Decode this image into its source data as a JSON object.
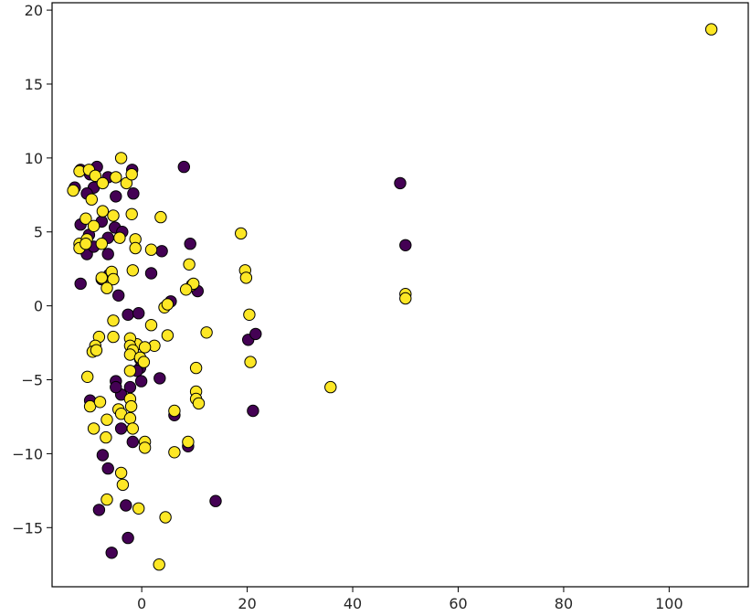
{
  "chart_data": {
    "type": "scatter",
    "title": "",
    "xlabel": "",
    "ylabel": "",
    "xlim": [
      -17,
      115
    ],
    "ylim": [
      -19,
      20.5
    ],
    "x_ticks": [
      0,
      20,
      40,
      60,
      80,
      100
    ],
    "y_ticks": [
      -15,
      -10,
      -5,
      0,
      5,
      10,
      15,
      20
    ],
    "x_tick_labels": [
      "0",
      "20",
      "40",
      "60",
      "80",
      "100"
    ],
    "y_tick_labels": [
      "−15",
      "−10",
      "−5",
      "0",
      "5",
      "10",
      "15",
      "20"
    ],
    "grid": false,
    "legend": "none",
    "colors": {
      "class_0": "#440154",
      "class_1": "#fde725",
      "edge": "#000000",
      "axes": "#000000"
    },
    "series": [
      {
        "class": 0,
        "color": "#440154",
        "points": [
          [
            -12.7,
            8.0
          ],
          [
            -11.6,
            9.2
          ],
          [
            -9.8,
            8.9
          ],
          [
            -8.5,
            9.4
          ],
          [
            -9.1,
            8.0
          ],
          [
            -10.4,
            7.6
          ],
          [
            -6.4,
            8.7
          ],
          [
            -4.9,
            7.4
          ],
          [
            -1.8,
            9.2
          ],
          [
            -1.6,
            7.6
          ],
          [
            -11.6,
            5.5
          ],
          [
            -10.0,
            4.8
          ],
          [
            -7.6,
            5.7
          ],
          [
            -6.4,
            4.6
          ],
          [
            -5.1,
            5.3
          ],
          [
            -3.7,
            5.0
          ],
          [
            -11.6,
            3.9
          ],
          [
            -10.4,
            3.5
          ],
          [
            -9.1,
            4.0
          ],
          [
            -6.4,
            3.5
          ],
          [
            -6.2,
            2.1
          ],
          [
            -11.6,
            1.5
          ],
          [
            -7.6,
            1.8
          ],
          [
            -4.4,
            0.7
          ],
          [
            -2.6,
            -0.6
          ],
          [
            -0.6,
            -0.5
          ],
          [
            -0.3,
            -3.6
          ],
          [
            -0.3,
            -4.2
          ],
          [
            -0.9,
            -4.4
          ],
          [
            -0.1,
            -5.1
          ],
          [
            -2.2,
            -5.5
          ],
          [
            -3.9,
            -6.0
          ],
          [
            -4.9,
            -5.1
          ],
          [
            -4.9,
            -5.5
          ],
          [
            -9.8,
            -6.4
          ],
          [
            -3.9,
            -8.3
          ],
          [
            -1.7,
            -9.2
          ],
          [
            -7.4,
            -10.1
          ],
          [
            -6.4,
            -11.0
          ],
          [
            -8.1,
            -13.8
          ],
          [
            -3.0,
            -13.5
          ],
          [
            -5.7,
            -16.7
          ],
          [
            -2.6,
            -15.7
          ],
          [
            3.8,
            3.7
          ],
          [
            8.0,
            9.4
          ],
          [
            9.2,
            4.2
          ],
          [
            10.6,
            1.0
          ],
          [
            5.5,
            0.3
          ],
          [
            3.4,
            -4.9
          ],
          [
            6.2,
            -7.4
          ],
          [
            8.8,
            -9.5
          ],
          [
            1.8,
            2.2
          ],
          [
            14.0,
            -13.2
          ],
          [
            20.2,
            -2.3
          ],
          [
            21.6,
            -1.9
          ],
          [
            21.1,
            -7.1
          ],
          [
            49.0,
            8.3
          ],
          [
            50.0,
            4.1
          ]
        ]
      },
      {
        "class": 1,
        "color": "#fde725",
        "points": [
          [
            -13.0,
            7.8
          ],
          [
            -11.8,
            9.1
          ],
          [
            -10.0,
            9.2
          ],
          [
            -9.5,
            7.2
          ],
          [
            -8.8,
            8.8
          ],
          [
            -7.4,
            8.3
          ],
          [
            -3.9,
            10.0
          ],
          [
            -4.9,
            8.7
          ],
          [
            -2.9,
            8.3
          ],
          [
            -1.9,
            8.9
          ],
          [
            -10.6,
            5.9
          ],
          [
            -9.1,
            5.4
          ],
          [
            -7.4,
            6.4
          ],
          [
            -5.4,
            6.1
          ],
          [
            -11.8,
            4.2
          ],
          [
            -10.4,
            4.5
          ],
          [
            -7.6,
            4.2
          ],
          [
            -4.2,
            4.6
          ],
          [
            -1.9,
            6.2
          ],
          [
            -1.2,
            4.5
          ],
          [
            -1.2,
            3.9
          ],
          [
            -11.8,
            3.9
          ],
          [
            -10.6,
            4.2
          ],
          [
            -5.7,
            2.1
          ],
          [
            -5.7,
            2.3
          ],
          [
            -5.4,
            1.8
          ],
          [
            -7.6,
            1.9
          ],
          [
            -6.6,
            1.2
          ],
          [
            -1.7,
            2.4
          ],
          [
            1.8,
            3.8
          ],
          [
            3.6,
            6.0
          ],
          [
            9.5,
            1.4
          ],
          [
            9.0,
            2.8
          ],
          [
            9.8,
            1.5
          ],
          [
            8.4,
            1.1
          ],
          [
            4.3,
            -0.1
          ],
          [
            4.9,
            0.1
          ],
          [
            1.8,
            -1.3
          ],
          [
            4.9,
            -2.0
          ],
          [
            2.4,
            -2.7
          ],
          [
            -0.9,
            -2.6
          ],
          [
            0.6,
            -2.8
          ],
          [
            -5.4,
            -2.1
          ],
          [
            -5.4,
            -1.0
          ],
          [
            -8.1,
            -2.1
          ],
          [
            -8.8,
            -2.7
          ],
          [
            -9.3,
            -3.1
          ],
          [
            -8.6,
            -3.0
          ],
          [
            -2.2,
            -2.2
          ],
          [
            -2.2,
            -2.7
          ],
          [
            -1.7,
            -3.0
          ],
          [
            -2.2,
            -3.3
          ],
          [
            -0.3,
            -3.5
          ],
          [
            0.4,
            -3.8
          ],
          [
            -2.2,
            -4.4
          ],
          [
            -10.3,
            -4.8
          ],
          [
            -9.8,
            -6.8
          ],
          [
            -7.9,
            -6.5
          ],
          [
            -4.4,
            -7.0
          ],
          [
            -3.9,
            -7.3
          ],
          [
            -2.2,
            -6.3
          ],
          [
            -2.0,
            -6.8
          ],
          [
            -2.2,
            -7.6
          ],
          [
            -6.6,
            -7.7
          ],
          [
            -6.8,
            -8.9
          ],
          [
            -9.1,
            -8.3
          ],
          [
            -1.7,
            -8.3
          ],
          [
            0.6,
            -9.2
          ],
          [
            0.6,
            -9.6
          ],
          [
            6.2,
            -9.9
          ],
          [
            8.8,
            -9.2
          ],
          [
            6.2,
            -7.1
          ],
          [
            10.3,
            -4.2
          ],
          [
            10.3,
            -5.8
          ],
          [
            10.3,
            -6.3
          ],
          [
            10.8,
            -6.6
          ],
          [
            12.3,
            -1.8
          ],
          [
            18.8,
            4.9
          ],
          [
            19.6,
            2.4
          ],
          [
            19.8,
            1.9
          ],
          [
            20.4,
            -0.6
          ],
          [
            20.6,
            -3.8
          ],
          [
            -3.9,
            -11.3
          ],
          [
            -3.6,
            -12.1
          ],
          [
            -6.6,
            -13.1
          ],
          [
            -0.6,
            -13.7
          ],
          [
            4.5,
            -14.3
          ],
          [
            3.3,
            -17.5
          ],
          [
            35.8,
            -5.5
          ],
          [
            50.0,
            0.8
          ],
          [
            50.0,
            0.5
          ],
          [
            108.0,
            18.7
          ]
        ]
      }
    ]
  }
}
